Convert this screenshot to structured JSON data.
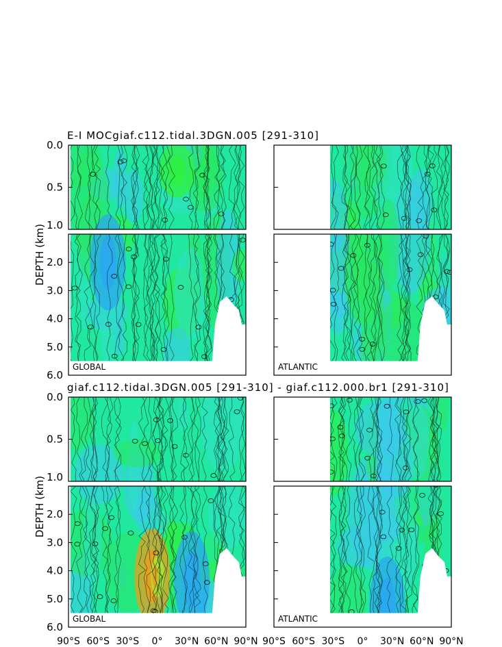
{
  "figure": {
    "section1_title": "E-I MOCgiaf.c112.tidal.3DGN.005 [291-310]",
    "section2_title": "giaf.c112.tidal.3DGN.005 [291-310] - giaf.c112.000.br1 [291-310]",
    "ylabel": "DEPTH (km)",
    "basin_global": "GLOBAL",
    "basin_atlantic": "ATLANTIC",
    "ytick_top": [
      "0.0",
      "0.5",
      "1.0"
    ],
    "ytick_bottom": [
      "2.0",
      "3.0",
      "4.0",
      "5.0",
      "6.0"
    ],
    "xtick_labels": [
      "90°S",
      "60°S",
      "30°S",
      "0°",
      "30°N",
      "60°N",
      "90°N"
    ]
  },
  "colors": {
    "deep_blue": "#2aa8f0",
    "light_blue": "#3cc8f0",
    "cyan": "#30e0c8",
    "aqua_green": "#20e8a0",
    "green": "#28e860",
    "bright_green": "#30f040",
    "yellow_green": "#a8e830",
    "orange": "#e8a020"
  },
  "chart_data": [
    {
      "type": "heatmap",
      "title": "E-I MOCgiaf.c112.tidal.3DGN.005 [291-310]",
      "subplot": "GLOBAL",
      "ylabel": "DEPTH (km)",
      "xlim": [
        -90,
        90
      ],
      "ylim_upper": [
        0.0,
        1.0
      ],
      "ylim_lower": [
        1.0,
        6.0
      ],
      "ocean_extent": {
        "lat": [
          -88,
          90
        ],
        "max_depth_km": 5.5
      },
      "features": [
        {
          "lat": -50,
          "depth_km": 2.0,
          "level": "min",
          "color": "deep_blue"
        },
        {
          "lat": 20,
          "depth_km": 0.3,
          "level": "max",
          "color": "bright_green"
        }
      ]
    },
    {
      "type": "heatmap",
      "title": "E-I MOCgiaf.c112.tidal.3DGN.005 [291-310]",
      "subplot": "ATLANTIC",
      "xlim": [
        -90,
        90
      ],
      "ocean_extent": {
        "lat": [
          -33,
          90
        ],
        "max_depth_km": 5.5
      },
      "features": [
        {
          "lat": 0,
          "depth_km": 2.5,
          "level": "max",
          "color": "green"
        }
      ]
    },
    {
      "type": "heatmap",
      "title": "giaf.c112.tidal.3DGN.005 [291-310] - giaf.c112.000.br1 [291-310]",
      "subplot": "GLOBAL",
      "xlim": [
        -90,
        90
      ],
      "ocean_extent": {
        "lat": [
          -88,
          90
        ],
        "max_depth_km": 5.5
      },
      "features": [
        {
          "lat": -5,
          "depth_km": 4.2,
          "level": "max",
          "color": "orange"
        },
        {
          "lat": 35,
          "depth_km": 4.3,
          "level": "min",
          "color": "deep_blue"
        }
      ]
    },
    {
      "type": "heatmap",
      "title": "giaf.c112.tidal.3DGN.005 [291-310] - giaf.c112.000.br1 [291-310]",
      "subplot": "ATLANTIC",
      "xlim": [
        -90,
        90
      ],
      "ocean_extent": {
        "lat": [
          -33,
          90
        ],
        "max_depth_km": 5.5
      },
      "features": [
        {
          "lat": 25,
          "depth_km": 5.2,
          "level": "min",
          "color": "deep_blue"
        }
      ]
    }
  ]
}
